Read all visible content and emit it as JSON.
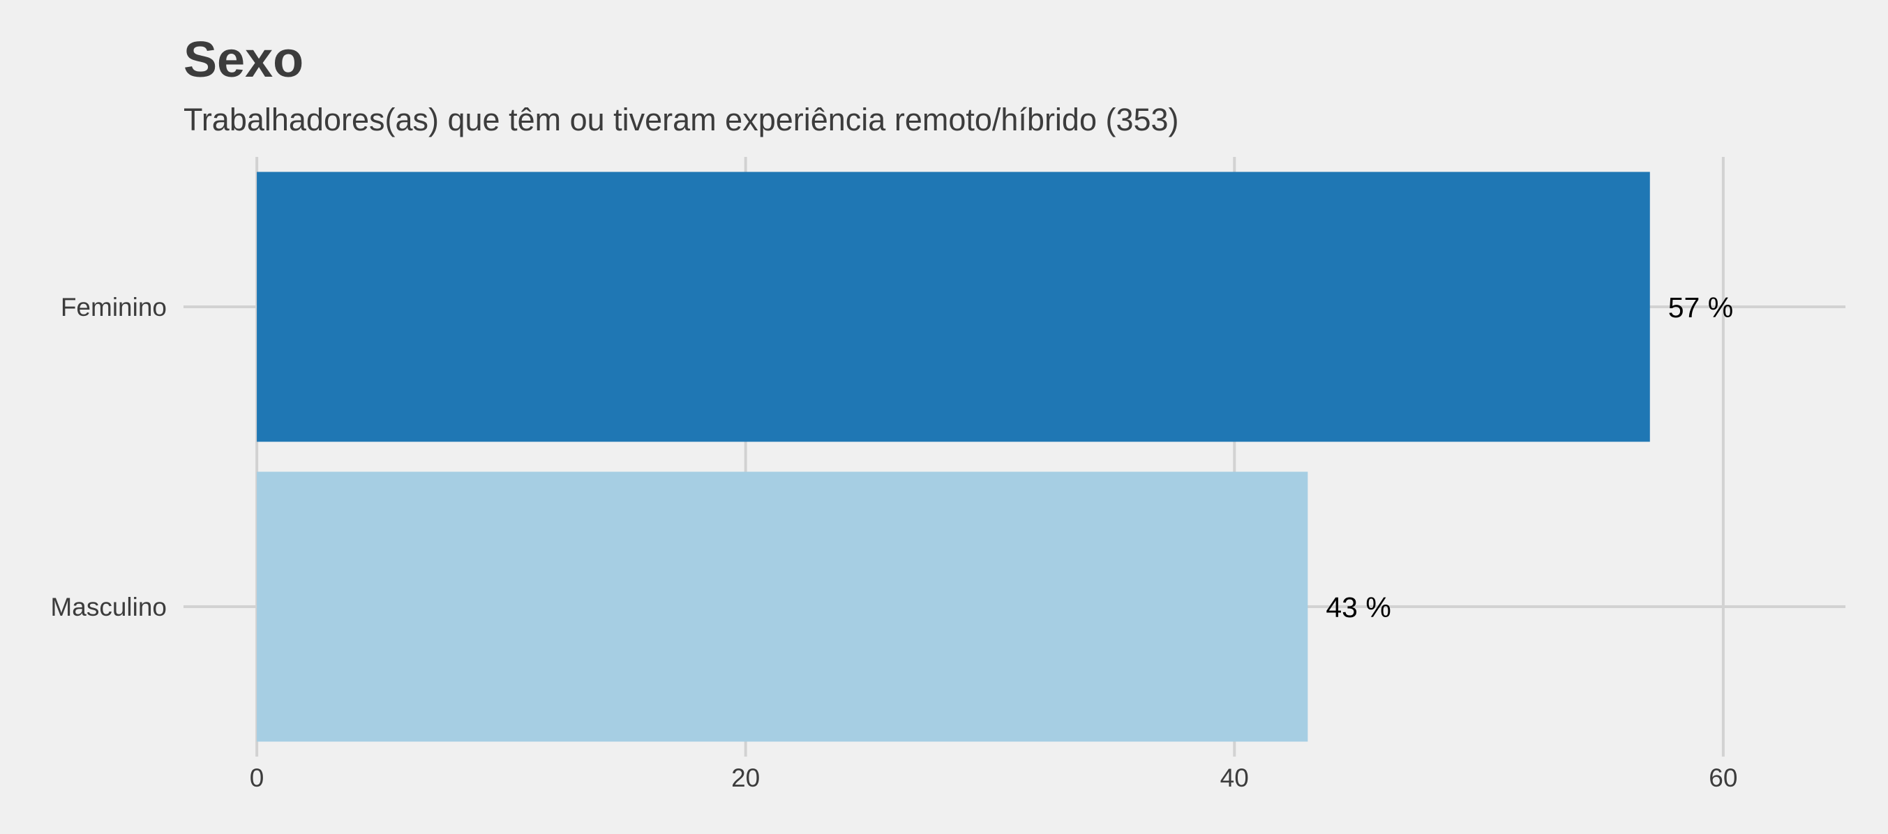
{
  "chart_data": {
    "type": "bar",
    "orientation": "horizontal",
    "title": "Sexo",
    "subtitle": "Trabalhadores(as) que têm ou tiveram experiência remoto/híbrido (353)",
    "categories": [
      "Feminino",
      "Masculino"
    ],
    "values": [
      57,
      43
    ],
    "data_labels": [
      "57 %",
      "43 %"
    ],
    "colors": [
      "#1f77b4",
      "#a6cee3"
    ],
    "xlabel": "",
    "ylabel": "",
    "xlim": [
      -3,
      65
    ],
    "xticks": [
      0,
      20,
      40,
      60
    ],
    "xtick_labels": [
      "0",
      "20",
      "40",
      "60"
    ],
    "grid": true
  }
}
